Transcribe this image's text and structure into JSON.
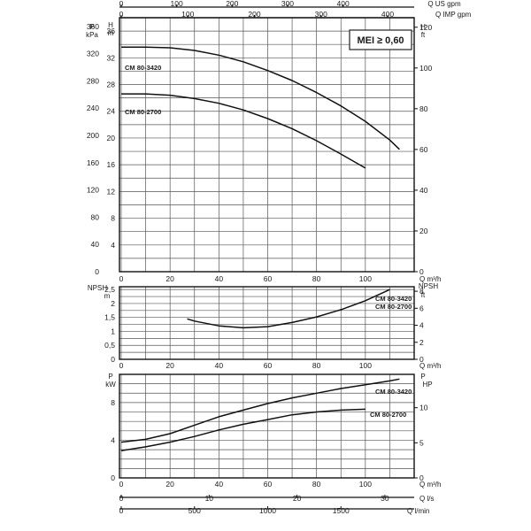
{
  "chart_data": {
    "type": "line",
    "mei_badge": "MEI ≥ 0,60",
    "top_axes": {
      "us_gpm": {
        "label": "Q US gpm",
        "ticks": [
          "0",
          "100",
          "200",
          "300",
          "400"
        ]
      },
      "imp_gpm": {
        "label": "Q IMP gpm",
        "ticks": [
          "0",
          "100",
          "200",
          "300",
          "400"
        ]
      }
    },
    "bottom_axes": {
      "m3h": {
        "label": "Q m³/h"
      },
      "ls": {
        "label": "Q l/s",
        "ticks": [
          "0",
          "10",
          "20",
          "30"
        ]
      },
      "lmin": {
        "label": "Q l/min",
        "ticks": [
          "0",
          "500",
          "1000",
          "1500"
        ]
      }
    },
    "panels": [
      {
        "id": "head",
        "left_axis_labels": [
          "P",
          "kPa"
        ],
        "left_axis2_labels": [
          "H",
          "m"
        ],
        "right_axis_labels": [
          "H",
          "ft"
        ],
        "x_ticks": [
          "0",
          "20",
          "40",
          "60",
          "80",
          "100"
        ],
        "x_label": "Q m³/h",
        "kpa_ticks": [
          "0",
          "40",
          "80",
          "120",
          "160",
          "200",
          "240",
          "280",
          "320",
          "360"
        ],
        "m_ticks": [
          "4",
          "8",
          "12",
          "16",
          "20",
          "24",
          "28",
          "32",
          "36"
        ],
        "ft_ticks": [
          "0",
          "20",
          "40",
          "60",
          "80",
          "100",
          "120"
        ],
        "xlim": [
          0,
          120
        ],
        "ylim": [
          0,
          38
        ],
        "series": [
          {
            "name": "CM 80-3420",
            "x": [
              0,
              10,
              20,
              30,
              40,
              50,
              60,
              70,
              80,
              90,
              100,
              110,
              114
            ],
            "y": [
              33.6,
              33.6,
              33.5,
              33.1,
              32.4,
              31.4,
              30.1,
              28.6,
              26.8,
              24.8,
              22.5,
              19.7,
              18.3
            ]
          },
          {
            "name": "CM 80-2700",
            "x": [
              0,
              10,
              20,
              30,
              40,
              50,
              60,
              70,
              80,
              90,
              100
            ],
            "y": [
              26.6,
              26.6,
              26.4,
              25.9,
              25.2,
              24.2,
              22.9,
              21.4,
              19.6,
              17.6,
              15.5
            ]
          }
        ]
      },
      {
        "id": "npsh",
        "left_axis_labels": [
          "NPSH",
          "m"
        ],
        "right_axis_labels": [
          "NPSH",
          "ft"
        ],
        "x_ticks": [
          "0",
          "20",
          "40",
          "60",
          "80",
          "100"
        ],
        "x_label": "Q m³/h",
        "m_ticks": [
          "0",
          "0,5",
          "1",
          "1,5",
          "2",
          "2,5"
        ],
        "ft_ticks": [
          "0",
          "2",
          "4",
          "6",
          "8"
        ],
        "xlim": [
          0,
          120
        ],
        "ylim": [
          0,
          2.6
        ],
        "series_labels": [
          "CM 80-3420",
          "CM 80-2700"
        ],
        "series": [
          {
            "name": "CM 80-3420 / CM 80-2700",
            "x": [
              27,
              30,
              40,
              50,
              60,
              70,
              80,
              90,
              100,
              110
            ],
            "y": [
              1.45,
              1.37,
              1.2,
              1.13,
              1.17,
              1.32,
              1.52,
              1.78,
              2.1,
              2.5
            ]
          }
        ]
      },
      {
        "id": "power",
        "left_axis_labels": [
          "P",
          "kW"
        ],
        "right_axis_labels": [
          "P",
          "HP"
        ],
        "x_ticks": [
          "0",
          "20",
          "40",
          "60",
          "80",
          "100"
        ],
        "x_label": "Q m³/h",
        "kw_ticks": [
          "0",
          "4",
          "8"
        ],
        "hp_ticks": [
          "0",
          "5",
          "10"
        ],
        "xlim": [
          0,
          120
        ],
        "ylim": [
          0,
          11
        ],
        "series": [
          {
            "name": "CM 80-3420",
            "x": [
              0,
              10,
              20,
              30,
              40,
              50,
              60,
              70,
              80,
              90,
              100,
              110,
              114
            ],
            "y": [
              3.8,
              4.1,
              4.7,
              5.6,
              6.5,
              7.2,
              7.9,
              8.5,
              9.0,
              9.5,
              9.9,
              10.3,
              10.5
            ]
          },
          {
            "name": "CM 80-2700",
            "x": [
              0,
              10,
              20,
              30,
              40,
              50,
              60,
              70,
              80,
              90,
              100
            ],
            "y": [
              2.9,
              3.3,
              3.8,
              4.4,
              5.1,
              5.7,
              6.2,
              6.7,
              7.0,
              7.2,
              7.3
            ]
          }
        ]
      }
    ]
  }
}
